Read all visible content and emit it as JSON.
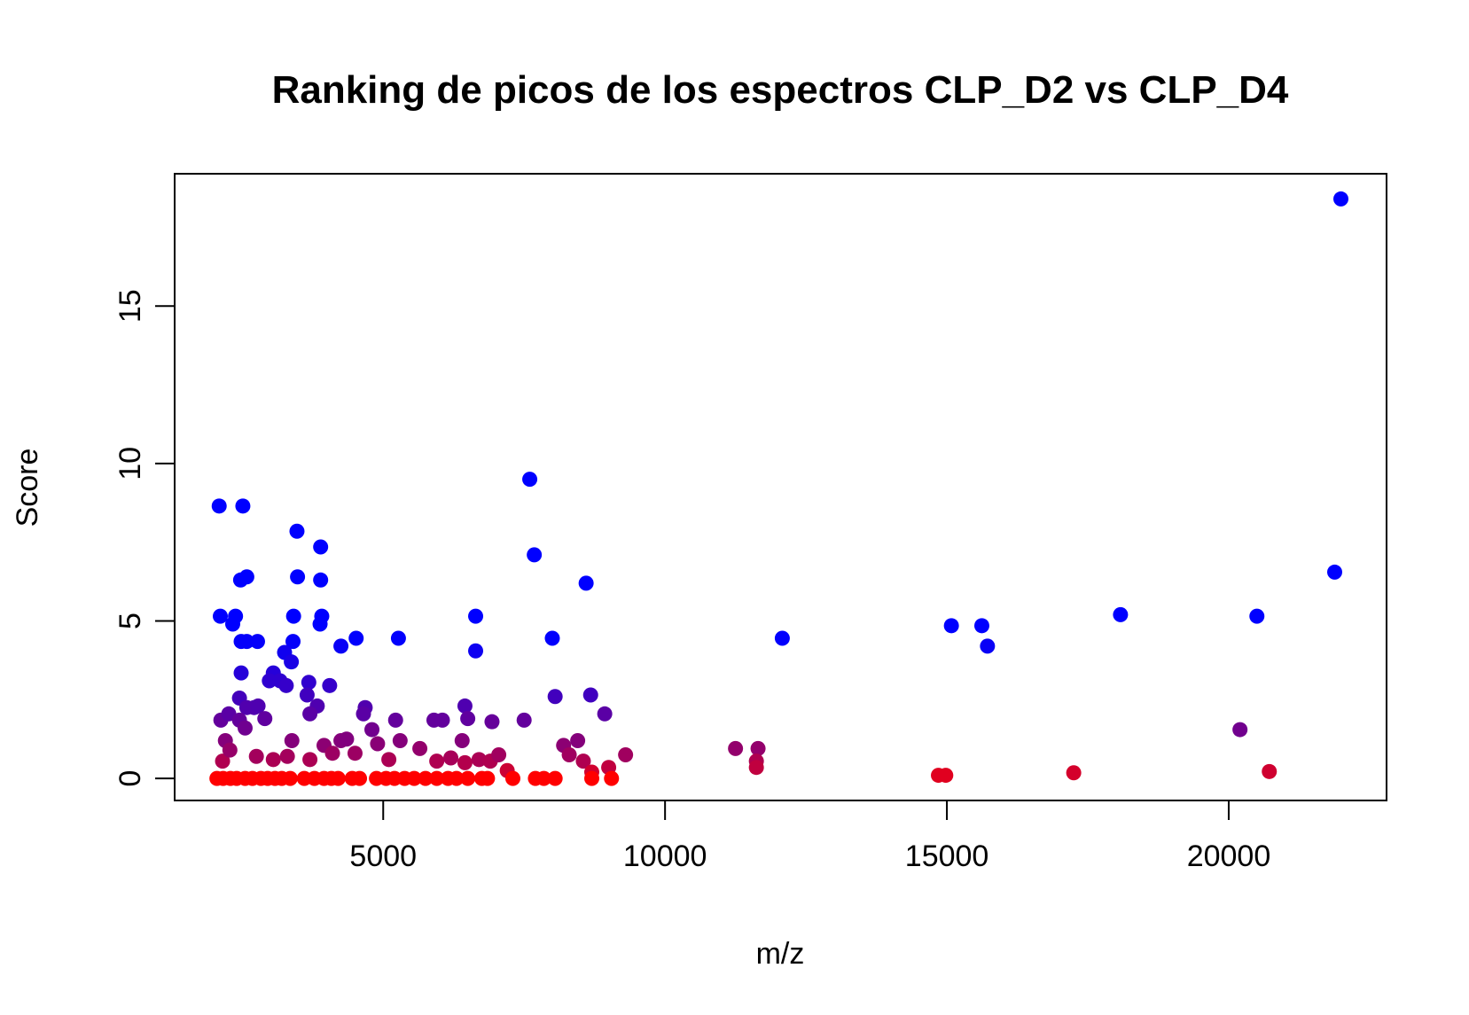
{
  "chart_data": {
    "type": "scatter",
    "title": "Ranking de picos de los espectros CLP_D2 vs CLP_D4",
    "xlabel": "m/z",
    "ylabel": "Score",
    "xlim": [
      1300,
      22800
    ],
    "ylim": [
      -0.7,
      19.2
    ],
    "xticks": [
      5000,
      10000,
      15000,
      20000
    ],
    "xtick_labels": [
      "5000",
      "10000",
      "15000",
      "20000"
    ],
    "yticks": [
      0,
      5,
      10,
      15
    ],
    "ytick_labels": [
      "0",
      "5",
      "10",
      "15"
    ],
    "grid": false,
    "color_scale": {
      "low": "#ff0000",
      "high": "#0000ff",
      "max_score": 18.4
    },
    "points": [
      [
        2090,
        8.65
      ],
      [
        2510,
        8.65
      ],
      [
        3470,
        7.85
      ],
      [
        3890,
        7.35
      ],
      [
        7600,
        9.5
      ],
      [
        7680,
        7.1
      ],
      [
        2470,
        6.3
      ],
      [
        2580,
        6.4
      ],
      [
        3480,
        6.4
      ],
      [
        3890,
        6.3
      ],
      [
        8600,
        6.2
      ],
      [
        2110,
        5.15
      ],
      [
        2380,
        5.15
      ],
      [
        3410,
        5.15
      ],
      [
        3910,
        5.15
      ],
      [
        3880,
        4.9
      ],
      [
        2330,
        4.9
      ],
      [
        6640,
        5.15
      ],
      [
        2480,
        4.35
      ],
      [
        2580,
        4.35
      ],
      [
        2770,
        4.35
      ],
      [
        3400,
        4.35
      ],
      [
        4250,
        4.2
      ],
      [
        4520,
        4.45
      ],
      [
        5270,
        4.45
      ],
      [
        6640,
        4.05
      ],
      [
        3250,
        4.0
      ],
      [
        3370,
        3.7
      ],
      [
        8000,
        4.45
      ],
      [
        2480,
        3.35
      ],
      [
        3050,
        3.35
      ],
      [
        2980,
        3.1
      ],
      [
        3170,
        3.1
      ],
      [
        3280,
        2.95
      ],
      [
        3680,
        3.05
      ],
      [
        4050,
        2.95
      ],
      [
        2450,
        2.55
      ],
      [
        2580,
        2.25
      ],
      [
        2710,
        2.25
      ],
      [
        2780,
        2.3
      ],
      [
        3650,
        2.65
      ],
      [
        3830,
        2.3
      ],
      [
        3700,
        2.05
      ],
      [
        4680,
        2.25
      ],
      [
        6450,
        2.3
      ],
      [
        8050,
        2.6
      ],
      [
        8680,
        2.65
      ],
      [
        8930,
        2.05
      ],
      [
        2120,
        1.85
      ],
      [
        2260,
        2.05
      ],
      [
        2450,
        1.85
      ],
      [
        2900,
        1.9
      ],
      [
        5220,
        1.85
      ],
      [
        5900,
        1.85
      ],
      [
        6050,
        1.85
      ],
      [
        6500,
        1.9
      ],
      [
        6930,
        1.8
      ],
      [
        7500,
        1.85
      ],
      [
        4650,
        2.05
      ],
      [
        2200,
        1.2
      ],
      [
        2550,
        1.6
      ],
      [
        3380,
        1.2
      ],
      [
        4250,
        1.2
      ],
      [
        4350,
        1.25
      ],
      [
        4800,
        1.55
      ],
      [
        5300,
        1.2
      ],
      [
        6400,
        1.2
      ],
      [
        8200,
        1.05
      ],
      [
        8450,
        1.2
      ],
      [
        2150,
        0.55
      ],
      [
        2280,
        0.9
      ],
      [
        2750,
        0.7
      ],
      [
        3050,
        0.6
      ],
      [
        3300,
        0.7
      ],
      [
        3700,
        0.6
      ],
      [
        3950,
        1.05
      ],
      [
        4100,
        0.8
      ],
      [
        4500,
        0.8
      ],
      [
        4900,
        1.1
      ],
      [
        5100,
        0.6
      ],
      [
        5650,
        0.95
      ],
      [
        5950,
        0.55
      ],
      [
        6200,
        0.65
      ],
      [
        6450,
        0.5
      ],
      [
        6700,
        0.6
      ],
      [
        6900,
        0.55
      ],
      [
        7050,
        0.75
      ],
      [
        7200,
        0.25
      ],
      [
        8300,
        0.75
      ],
      [
        8550,
        0.55
      ],
      [
        8700,
        0.2
      ],
      [
        9000,
        0.35
      ],
      [
        9300,
        0.75
      ],
      [
        11250,
        0.95
      ],
      [
        11650,
        0.95
      ],
      [
        11620,
        0.55
      ],
      [
        11620,
        0.35
      ],
      [
        20200,
        1.55
      ],
      [
        20720,
        0.22
      ],
      [
        17250,
        0.18
      ],
      [
        14850,
        0.1
      ],
      [
        14980,
        0.1
      ],
      [
        2050,
        0.0
      ],
      [
        2160,
        0.0
      ],
      [
        2290,
        0.0
      ],
      [
        2400,
        0.0
      ],
      [
        2550,
        0.0
      ],
      [
        2680,
        0.0
      ],
      [
        2830,
        0.0
      ],
      [
        2950,
        0.0
      ],
      [
        3080,
        0.0
      ],
      [
        3200,
        0.0
      ],
      [
        3350,
        0.0
      ],
      [
        3600,
        0.0
      ],
      [
        3780,
        0.0
      ],
      [
        3950,
        0.0
      ],
      [
        4080,
        0.0
      ],
      [
        4200,
        0.0
      ],
      [
        4450,
        0.0
      ],
      [
        4580,
        0.0
      ],
      [
        4880,
        0.0
      ],
      [
        5050,
        0.0
      ],
      [
        5200,
        0.0
      ],
      [
        5380,
        0.0
      ],
      [
        5550,
        0.0
      ],
      [
        5750,
        0.0
      ],
      [
        5950,
        0.0
      ],
      [
        6150,
        0.0
      ],
      [
        6300,
        0.0
      ],
      [
        6500,
        0.0
      ],
      [
        6750,
        0.0
      ],
      [
        6850,
        0.0
      ],
      [
        7300,
        0.0
      ],
      [
        7700,
        0.0
      ],
      [
        7850,
        0.0
      ],
      [
        8050,
        0.0
      ],
      [
        8700,
        0.0
      ],
      [
        9050,
        0.0
      ],
      [
        12080,
        4.45
      ],
      [
        15080,
        4.85
      ],
      [
        15620,
        4.85
      ],
      [
        15720,
        4.2
      ],
      [
        18080,
        5.2
      ],
      [
        20500,
        5.15
      ],
      [
        21880,
        6.55
      ],
      [
        21990,
        18.4
      ]
    ]
  }
}
